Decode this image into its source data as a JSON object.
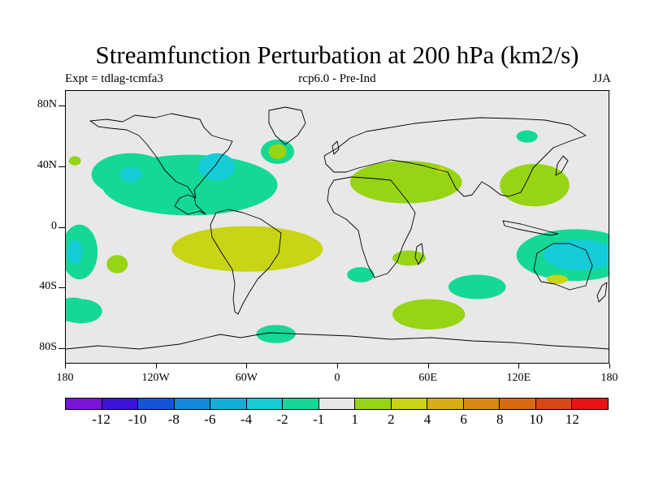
{
  "map": {
    "title": "Streamfunction Perturbation at 200 hPa (km2/s)",
    "left_subtitle": "Expt = tdlag-tcmfa3",
    "center_subtitle": "rcp6.0 - Pre-Ind",
    "right_subtitle": "JJA",
    "lat_labels": [
      "80N",
      "40N",
      "0",
      "40S",
      "80S"
    ],
    "lat_values": [
      80,
      40,
      0,
      -40,
      -80
    ],
    "lon_labels": [
      "180",
      "120W",
      "60W",
      "0",
      "60E",
      "120E",
      "180"
    ],
    "lon_values": [
      -180,
      -120,
      -60,
      0,
      60,
      120,
      180
    ],
    "lat_range": [
      -90,
      90
    ],
    "lon_range": [
      -180,
      180
    ],
    "background_color": "#e8e8e8",
    "colorbar": {
      "colors": [
        "#7b14d8",
        "#3c14d8",
        "#1455d8",
        "#1488d8",
        "#14aed8",
        "#14cdd8",
        "#14d896",
        "#e8e8e8",
        "#96d414",
        "#c8d414",
        "#d8ae14",
        "#d88814",
        "#d86a14",
        "#d84614",
        "#e81414"
      ],
      "labels": [
        "-12",
        "-10",
        "-8",
        "-6",
        "-4",
        "-2",
        "-1",
        "1",
        "2",
        "4",
        "6",
        "8",
        "10",
        "12"
      ]
    },
    "anomaly_regions": [
      {
        "name": "n-atlantic-ridge",
        "level": "-1",
        "color": "#14d896",
        "lon": -98,
        "lat": 28,
        "rlon": 58,
        "rlat": 20
      },
      {
        "name": "ne-pacific-low",
        "level": "-1",
        "color": "#14d896",
        "lon": -137,
        "lat": 35,
        "rlon": 26,
        "rlat": 14
      },
      {
        "name": "ne-pacific-low-core",
        "level": "-4",
        "color": "#14cdd8",
        "lon": -137,
        "lat": 35,
        "rlon": 7,
        "rlat": 5
      },
      {
        "name": "us-east-low-core",
        "level": "-4",
        "color": "#14cdd8",
        "lon": -80,
        "lat": 40,
        "rlon": 12,
        "rlat": 9
      },
      {
        "name": "n-atlantic-low-2",
        "level": "-1",
        "color": "#14d896",
        "lon": -40,
        "lat": 50,
        "rlon": 11,
        "rlat": 8
      },
      {
        "name": "gulf-low",
        "level": "-1",
        "color": "#14d896",
        "lon": -60,
        "lat": 28,
        "rlon": 15,
        "rlat": 8
      },
      {
        "name": "greenland-high",
        "level": "1",
        "color": "#96d414",
        "lon": -40,
        "lat": 50,
        "rlon": 6,
        "rlat": 5
      },
      {
        "name": "n-pacific-small",
        "level": "1",
        "color": "#96d414",
        "lon": -174,
        "lat": 44,
        "rlon": 4,
        "rlat": 3
      },
      {
        "name": "s-pacific-high",
        "level": "2",
        "color": "#c8d414",
        "lon": -60,
        "lat": -14,
        "rlon": 50,
        "rlat": 15
      },
      {
        "name": "s-pacific-high-1",
        "level": "2",
        "color": "#c8d414",
        "lon": -76,
        "lat": -14,
        "rlon": 10,
        "rlat": 7
      },
      {
        "name": "s-pacific-high-2",
        "level": "2",
        "color": "#c8d414",
        "lon": -40,
        "lat": -14,
        "rlon": 10,
        "rlat": 7
      },
      {
        "name": "s-pacific-small",
        "level": "1",
        "color": "#96d414",
        "lon": -146,
        "lat": -24,
        "rlon": 7,
        "rlat": 6
      },
      {
        "name": "c-pacific-low",
        "level": "-1",
        "color": "#14d896",
        "lon": -171,
        "lat": -16,
        "rlon": 12,
        "rlat": 18
      },
      {
        "name": "c-pacific-low-core",
        "level": "-4",
        "color": "#14cdd8",
        "lon": -174,
        "lat": -16,
        "rlon": 5,
        "rlat": 8
      },
      {
        "name": "s-pacific-low-2",
        "level": "-1",
        "color": "#14d896",
        "lon": -175,
        "lat": -54,
        "rlon": 12,
        "rlat": 8
      },
      {
        "name": "mid-east-high",
        "level": "1",
        "color": "#96d414",
        "lon": 45,
        "lat": 30,
        "rlon": 37,
        "rlat": 14
      },
      {
        "name": "mid-east-high-core",
        "level": "2",
        "color": "#c8d414",
        "lon": 68,
        "lat": 38,
        "rlon": 3,
        "rlat": 2
      },
      {
        "name": "e-asia-high",
        "level": "1",
        "color": "#96d414",
        "lon": 130,
        "lat": 28,
        "rlon": 23,
        "rlat": 14
      },
      {
        "name": "siberia-low",
        "level": "-1",
        "color": "#14d896",
        "lon": 125,
        "lat": 60,
        "rlon": 7,
        "rlat": 4
      },
      {
        "name": "w-pacific-low",
        "level": "-1",
        "color": "#14d896",
        "lon": 157,
        "lat": -18,
        "rlon": 39,
        "rlat": 17
      },
      {
        "name": "w-pacific-low-core",
        "level": "-4",
        "color": "#14cdd8",
        "lon": 160,
        "lat": -18,
        "rlon": 24,
        "rlat": 10
      },
      {
        "name": "s-africa-high",
        "level": "1",
        "color": "#96d414",
        "lon": 47,
        "lat": -20,
        "rlon": 11,
        "rlat": 5
      },
      {
        "name": "s-atlantic-low",
        "level": "-1",
        "color": "#14d896",
        "lon": 15,
        "lat": -31,
        "rlon": 9,
        "rlat": 5
      },
      {
        "name": "s-indian-high",
        "level": "1",
        "color": "#96d414",
        "lon": 60,
        "lat": -57,
        "rlon": 24,
        "rlat": 10
      },
      {
        "name": "s-indian-low",
        "level": "-1",
        "color": "#14d896",
        "lon": 92,
        "lat": -39,
        "rlon": 19,
        "rlat": 8
      },
      {
        "name": "australia-high",
        "level": "2",
        "color": "#c8d414",
        "lon": 145,
        "lat": -34,
        "rlon": 7,
        "rlat": 3
      },
      {
        "name": "antarctic-low",
        "level": "-1",
        "color": "#14d896",
        "lon": -41,
        "lat": -70,
        "rlon": 13,
        "rlat": 6
      },
      {
        "name": "se-pacific-low",
        "level": "-1",
        "color": "#14d896",
        "lon": -170,
        "lat": -55,
        "rlon": 14,
        "rlat": 8
      }
    ]
  }
}
